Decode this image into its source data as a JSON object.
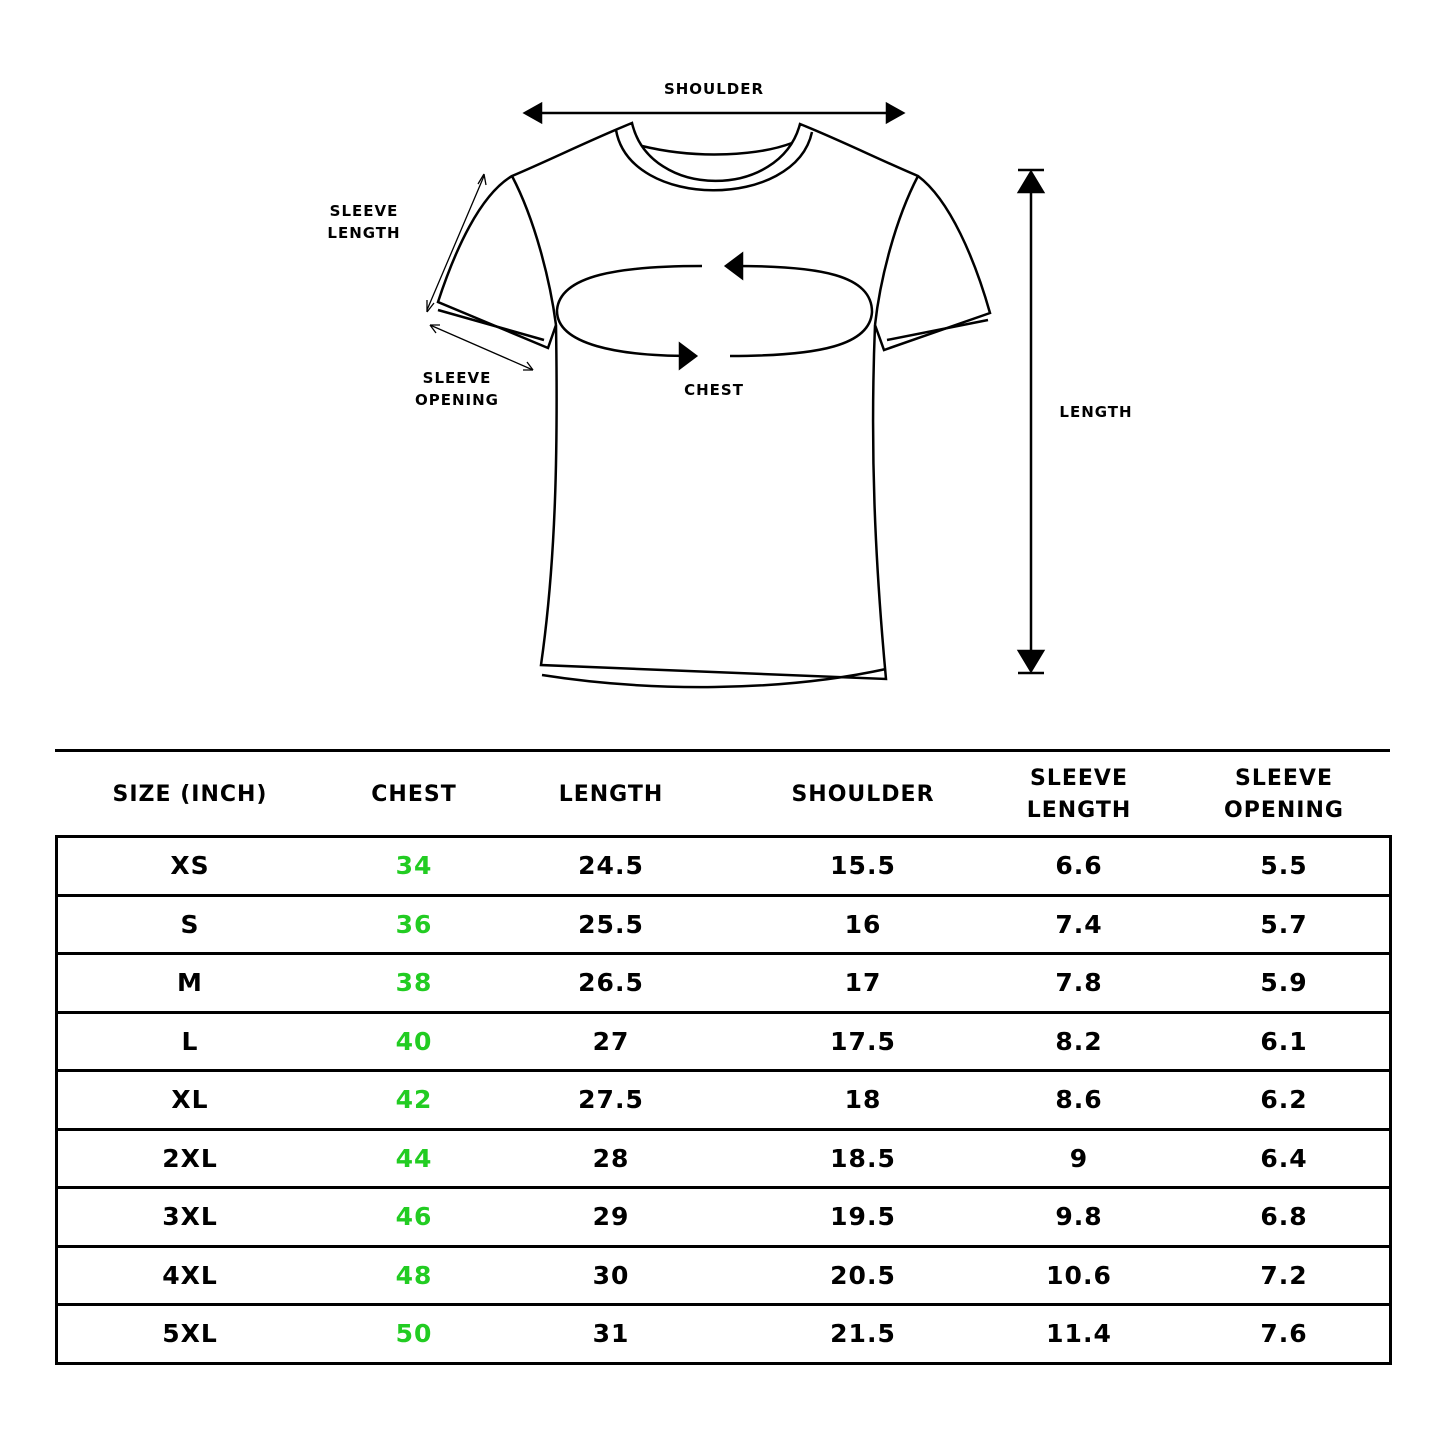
{
  "diagram": {
    "labels": {
      "shoulder": "SHOULDER",
      "sleeve_length": [
        "SLEEVE",
        "LENGTH"
      ],
      "sleeve_opening": [
        "SLEEVE",
        "OPENING"
      ],
      "chest": "CHEST",
      "length": "LENGTH"
    }
  },
  "table": {
    "headers": [
      [
        "SIZE (INCH)"
      ],
      [
        "CHEST"
      ],
      [
        "LENGTH"
      ],
      [
        "SHOULDER"
      ],
      [
        "SLEEVE",
        "LENGTH"
      ],
      [
        "SLEEVE",
        "OPENING"
      ]
    ],
    "highlight_color": "#22cc22",
    "rows": [
      [
        "XS",
        "34",
        "24.5",
        "15.5",
        "6.6",
        "5.5"
      ],
      [
        "S",
        "36",
        "25.5",
        "16",
        "7.4",
        "5.7"
      ],
      [
        "M",
        "38",
        "26.5",
        "17",
        "7.8",
        "5.9"
      ],
      [
        "L",
        "40",
        "27",
        "17.5",
        "8.2",
        "6.1"
      ],
      [
        "XL",
        "42",
        "27.5",
        "18",
        "8.6",
        "6.2"
      ],
      [
        "2XL",
        "44",
        "28",
        "18.5",
        "9",
        "6.4"
      ],
      [
        "3XL",
        "46",
        "29",
        "19.5",
        "9.8",
        "6.8"
      ],
      [
        "4XL",
        "48",
        "30",
        "20.5",
        "10.6",
        "7.2"
      ],
      [
        "5XL",
        "50",
        "31",
        "21.5",
        "11.4",
        "7.6"
      ]
    ]
  }
}
